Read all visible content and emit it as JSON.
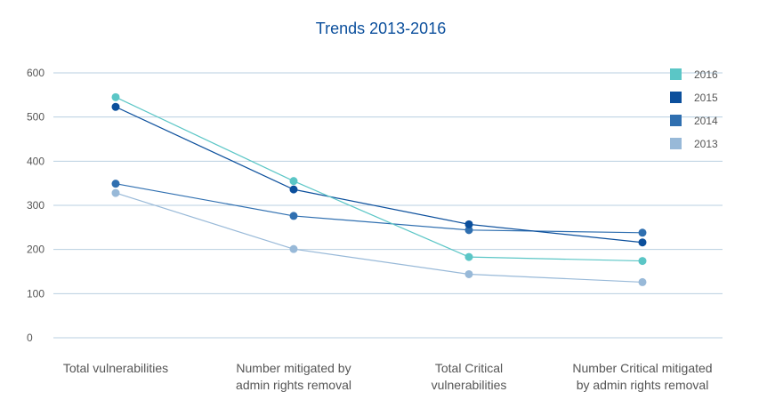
{
  "chart_data": {
    "type": "line",
    "title": "Trends 2013-2016",
    "xlabel": "",
    "ylabel": "",
    "categories": [
      [
        "Total vulnerabilities"
      ],
      [
        "Number mitigated by",
        "admin rights removal"
      ],
      [
        "Total Critical",
        "vulnerabilities"
      ],
      [
        "Number Critical mitigated",
        "by admin rights removal"
      ]
    ],
    "yticks": [
      "0",
      "100",
      "200",
      "300",
      "400",
      "500",
      "600"
    ],
    "ylim": [
      0,
      600
    ],
    "grid": true,
    "legend_position": "top-right",
    "series": [
      {
        "name": "2016",
        "color": "#5bc6c6",
        "values": [
          545,
          355,
          183,
          174
        ]
      },
      {
        "name": "2015",
        "color": "#0b4f9c",
        "values": [
          523,
          336,
          257,
          216
        ]
      },
      {
        "name": "2014",
        "color": "#2f6fb0",
        "values": [
          349,
          276,
          244,
          238
        ]
      },
      {
        "name": "2013",
        "color": "#98b9d8",
        "values": [
          328,
          201,
          144,
          126
        ]
      }
    ]
  },
  "colors": {
    "title": "#0b4f9c",
    "grid": "#b8cfe0",
    "text": "#555555"
  }
}
